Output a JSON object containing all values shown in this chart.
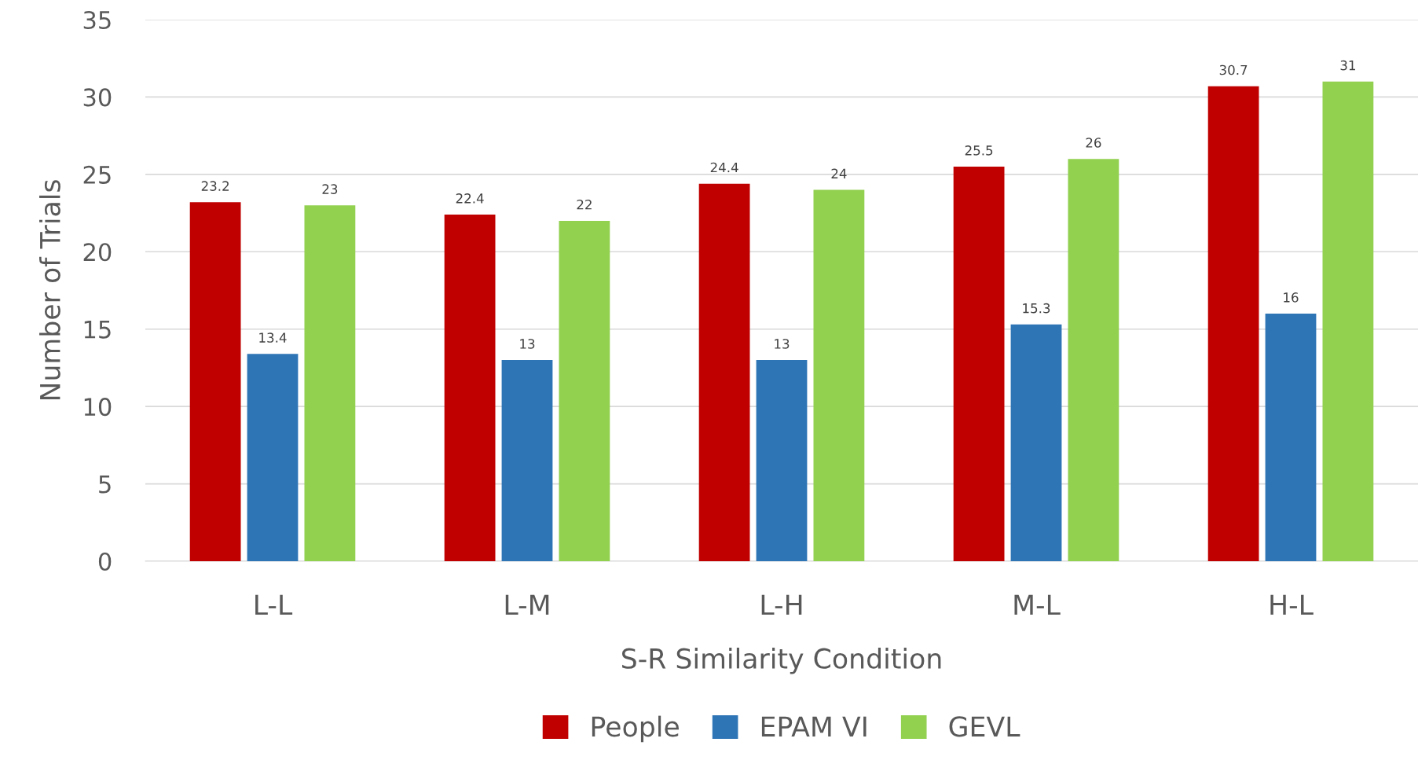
{
  "chart_data": {
    "type": "bar",
    "xlabel": "S-R Similarity Condition",
    "ylabel": "Number of Trials",
    "categories": [
      "L-L",
      "L-M",
      "L-H",
      "M-L",
      "H-L"
    ],
    "series": [
      {
        "name": "People",
        "color": "#c00000",
        "values": [
          23.2,
          22.4,
          24.4,
          25.5,
          30.7
        ]
      },
      {
        "name": "EPAM VI",
        "color": "#2e75b6",
        "values": [
          13.4,
          13,
          13,
          15.3,
          16
        ]
      },
      {
        "name": "GEVL",
        "color": "#92d050",
        "values": [
          23,
          22,
          24,
          26,
          31
        ]
      }
    ],
    "ylim": [
      0,
      35
    ],
    "yticks": [
      0,
      5,
      10,
      15,
      20,
      25,
      30,
      35
    ],
    "grid": "y",
    "legend": "bottom",
    "data_labels": true
  }
}
